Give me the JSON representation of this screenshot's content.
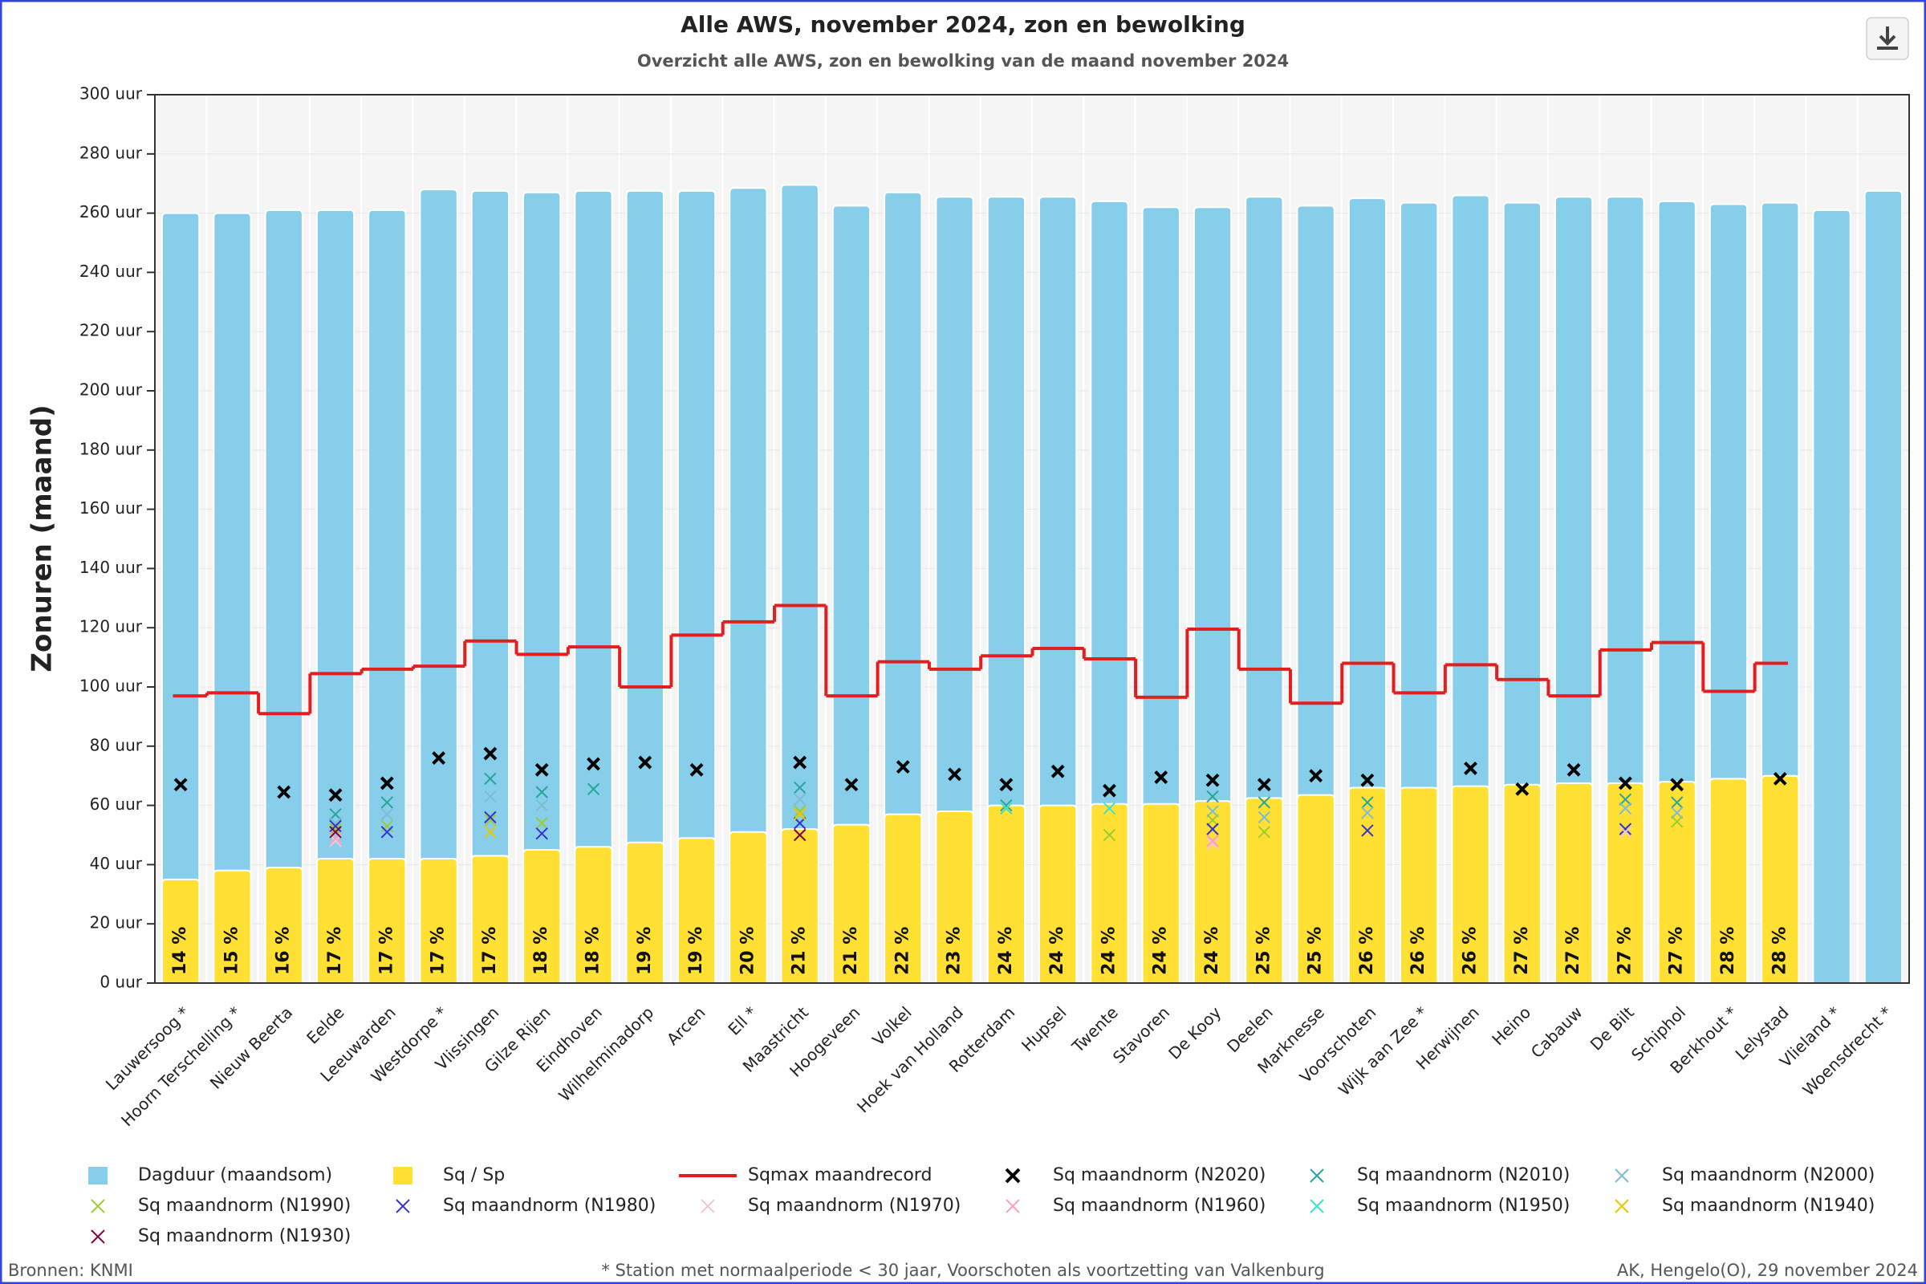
{
  "chart_data": {
    "type": "bar",
    "title": "Alle AWS, november 2024, zon en bewolking",
    "subtitle": "Overzicht alle AWS, zon en bewolking van de maand november 2024",
    "y_label": "Zonuren (maand)",
    "categories": [
      "Lauwersoog *",
      "Hoorn Terschelling *",
      "Nieuw Beerta",
      "Eelde",
      "Leeuwarden",
      "Westdorpe *",
      "Vlissingen",
      "Gilze Rijen",
      "Eindhoven",
      "Wilhelminadorp",
      "Arcen",
      "Ell *",
      "Maastricht",
      "Hoogeveen",
      "Volkel",
      "Hoek van Holland",
      "Rotterdam",
      "Hupsel",
      "Twente",
      "Stavoren",
      "De Kooy",
      "Deelen",
      "Marknesse",
      "Voorschoten",
      "Wijk aan Zee *",
      "Herwijnen",
      "Heino",
      "Cabauw",
      "De Bilt",
      "Schiphol",
      "Berkhout *",
      "Lelystad",
      "Vlieland *",
      "Woensdrecht *"
    ],
    "ylim": [
      0,
      300
    ],
    "yticks": [
      {
        "value": 0,
        "label": "0 uur"
      },
      {
        "value": 20,
        "label": "20 uur"
      },
      {
        "value": 40,
        "label": "40 uur"
      },
      {
        "value": 60,
        "label": "60 uur"
      },
      {
        "value": 80,
        "label": "80 uur"
      },
      {
        "value": 100,
        "label": "100 uur"
      },
      {
        "value": 120,
        "label": "120 uur"
      },
      {
        "value": 140,
        "label": "140 uur"
      },
      {
        "value": 160,
        "label": "160 uur"
      },
      {
        "value": 180,
        "label": "180 uur"
      },
      {
        "value": 200,
        "label": "200 uur"
      },
      {
        "value": 220,
        "label": "220 uur"
      },
      {
        "value": 240,
        "label": "240 uur"
      },
      {
        "value": 260,
        "label": "260 uur"
      },
      {
        "value": 280,
        "label": "280 uur"
      },
      {
        "value": 300,
        "label": "300 uur"
      }
    ],
    "grid": true,
    "series": [
      {
        "name": "Dagduur (maandsom)",
        "type": "bar",
        "color": "#87ceeb",
        "values": [
          260,
          260,
          261,
          261,
          261,
          268,
          267.5,
          267,
          267.5,
          267.5,
          267.5,
          268.5,
          269.5,
          262.5,
          267,
          265.5,
          265.5,
          265.5,
          264,
          262,
          262,
          265.5,
          262.5,
          265,
          263.5,
          266,
          263.5,
          265.5,
          265.5,
          264,
          263,
          263.5,
          261,
          267.5
        ]
      },
      {
        "name": "Sq / Sp",
        "type": "bar",
        "color": "#ffe033",
        "values": [
          35,
          38,
          39,
          42,
          42,
          42,
          43,
          45,
          46,
          47.5,
          49,
          51,
          52,
          53.5,
          57,
          58,
          60,
          60,
          60.5,
          60.5,
          61.5,
          62.5,
          63.5,
          66,
          66,
          66.5,
          67,
          67.5,
          67.5,
          68,
          69,
          70,
          null,
          null
        ],
        "percentage_labels": [
          "14 %",
          "15 %",
          "16 %",
          "17 %",
          "17 %",
          "17 %",
          "17 %",
          "18 %",
          "18 %",
          "19 %",
          "19 %",
          "20 %",
          "21 %",
          "21 %",
          "22 %",
          "23 %",
          "24 %",
          "24 %",
          "24 %",
          "24 %",
          "24 %",
          "25 %",
          "25 %",
          "26 %",
          "26 %",
          "26 %",
          "27 %",
          "27 %",
          "27 %",
          "27 %",
          "28 %",
          "28 %",
          null,
          null
        ]
      },
      {
        "name": "Sqmax maandrecord",
        "type": "line",
        "color": "#e02020",
        "values": [
          97,
          98,
          91,
          104.5,
          106,
          107,
          115.5,
          111,
          113.5,
          100,
          117.5,
          122,
          127.5,
          97,
          108.5,
          106,
          110.5,
          113,
          109.5,
          96.5,
          119.5,
          106,
          94.5,
          108,
          98,
          107.5,
          102.5,
          97,
          112.5,
          115,
          98.5,
          108,
          null,
          null
        ]
      },
      {
        "name": "Sq maandnorm (N2020)",
        "type": "scatter",
        "color": "#000000",
        "values": [
          67,
          null,
          64.5,
          63.5,
          67.5,
          76,
          77.5,
          72,
          74,
          74.5,
          72,
          null,
          74.5,
          67,
          73,
          70.5,
          67,
          71.5,
          65,
          69.5,
          68.5,
          67,
          70,
          68.5,
          null,
          72.5,
          65.5,
          72,
          67.5,
          67,
          null,
          69,
          null,
          null
        ]
      },
      {
        "name": "Sq maandnorm (N2010)",
        "type": "scatter",
        "color": "#26a69a",
        "values": [
          null,
          null,
          null,
          57,
          61,
          null,
          69,
          64.5,
          65.5,
          null,
          null,
          null,
          66,
          null,
          null,
          null,
          60,
          null,
          null,
          null,
          63,
          61,
          null,
          61,
          null,
          null,
          null,
          null,
          62,
          61,
          null,
          null,
          null,
          null
        ]
      },
      {
        "name": "Sq maandnorm (N2000)",
        "type": "scatter",
        "color": "#7fbcd2",
        "values": [
          null,
          null,
          null,
          54,
          57,
          null,
          63,
          60,
          null,
          null,
          null,
          null,
          62,
          null,
          null,
          null,
          null,
          null,
          null,
          null,
          58,
          56,
          null,
          57.5,
          null,
          null,
          null,
          null,
          59,
          57.5,
          null,
          null,
          null,
          null
        ]
      },
      {
        "name": "Sq maandnorm (N1990)",
        "type": "scatter",
        "color": "#9acd32",
        "values": [
          null,
          null,
          null,
          52,
          53,
          null,
          55,
          54,
          null,
          null,
          null,
          null,
          58,
          null,
          null,
          null,
          59,
          null,
          50,
          null,
          55,
          51,
          null,
          null,
          null,
          null,
          null,
          null,
          null,
          54.5,
          null,
          null,
          null,
          null
        ]
      },
      {
        "name": "Sq maandnorm (N1980)",
        "type": "scatter",
        "color": "#3333cc",
        "values": [
          null,
          null,
          null,
          53,
          51,
          null,
          56,
          50.5,
          null,
          null,
          null,
          null,
          54,
          null,
          null,
          null,
          null,
          null,
          null,
          null,
          52,
          null,
          null,
          51.5,
          null,
          null,
          null,
          null,
          52,
          null,
          null,
          null,
          null,
          null
        ]
      },
      {
        "name": "Sq maandnorm (N1970)",
        "type": "scatter",
        "color": "#f0c8d4",
        "values": [
          null,
          null,
          null,
          48,
          null,
          null,
          null,
          null,
          null,
          null,
          null,
          null,
          null,
          null,
          null,
          null,
          null,
          null,
          null,
          null,
          47,
          null,
          null,
          null,
          null,
          null,
          null,
          null,
          51,
          null,
          null,
          null,
          null,
          null
        ]
      },
      {
        "name": "Sq maandnorm (N1960)",
        "type": "scatter",
        "color": "#ffa0c0",
        "values": [
          null,
          null,
          null,
          49,
          null,
          null,
          null,
          null,
          null,
          null,
          null,
          null,
          null,
          null,
          null,
          null,
          null,
          null,
          null,
          null,
          48,
          null,
          null,
          null,
          null,
          null,
          null,
          null,
          null,
          null,
          null,
          null,
          null,
          null
        ]
      },
      {
        "name": "Sq maandnorm (N1950)",
        "type": "scatter",
        "color": "#40e0d0",
        "values": [
          null,
          null,
          null,
          null,
          null,
          null,
          null,
          null,
          null,
          null,
          null,
          null,
          null,
          null,
          null,
          null,
          59,
          null,
          59,
          null,
          null,
          null,
          null,
          null,
          null,
          null,
          null,
          null,
          null,
          null,
          null,
          null,
          null,
          null
        ]
      },
      {
        "name": "Sq maandnorm (N1940)",
        "type": "scatter",
        "color": "#e8c800",
        "values": [
          null,
          null,
          null,
          null,
          null,
          null,
          51,
          null,
          null,
          null,
          null,
          null,
          57,
          null,
          null,
          null,
          null,
          null,
          null,
          null,
          null,
          null,
          null,
          null,
          null,
          null,
          null,
          null,
          null,
          null,
          null,
          null,
          null,
          null
        ]
      },
      {
        "name": "Sq maandnorm (N1930)",
        "type": "scatter",
        "color": "#800040",
        "values": [
          null,
          null,
          null,
          51,
          null,
          null,
          null,
          null,
          null,
          null,
          null,
          null,
          50,
          null,
          null,
          null,
          null,
          null,
          null,
          null,
          null,
          null,
          null,
          null,
          null,
          null,
          null,
          null,
          null,
          null,
          null,
          null,
          null,
          null
        ]
      }
    ],
    "footer_left": "Bronnen: KNMI",
    "footer_center": "* Station met normaalperiode < 30 jaar, Voorschoten als voortzetting van Valkenburg",
    "footer_right": "AK, Hengelo(O), 29 november 2024"
  }
}
